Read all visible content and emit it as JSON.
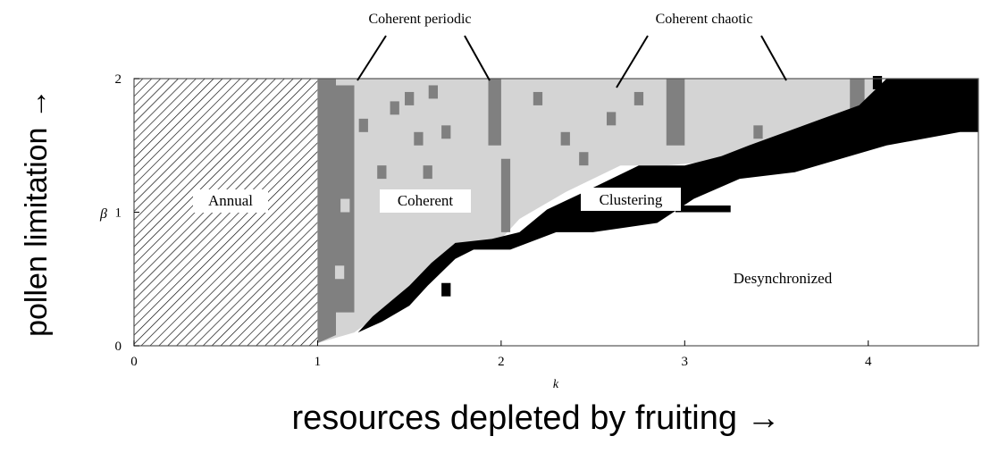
{
  "chart_data": {
    "type": "heatmap",
    "xlabel": "k",
    "ylabel": "β",
    "xlim": [
      0,
      4.6
    ],
    "ylim": [
      0,
      2
    ],
    "x_ticks": [
      "0",
      "1",
      "2",
      "3",
      "4"
    ],
    "y_ticks": [
      "0",
      "1",
      "2"
    ],
    "outer_xlabel": "resources depleted by fruiting →",
    "outer_ylabel": "pollen limitation →",
    "categories": {
      "annual": {
        "label": "Annual",
        "fill": "hatched"
      },
      "periodic": {
        "label": "Coherent periodic",
        "color": "#808080"
      },
      "chaotic": {
        "label": "Coherent chaotic",
        "color": "#d4d4d4"
      },
      "clustering": {
        "label": "Clustering",
        "color": "#000000"
      },
      "desync": {
        "label": "Desynchronized",
        "color": "#ffffff"
      }
    },
    "annotations": {
      "annual": "Annual",
      "coherent": "Coherent",
      "clustering": "Clustering",
      "desync": "Desynchronized",
      "coherent_periodic": "Coherent periodic",
      "coherent_chaotic": "Coherent chaotic"
    },
    "regions": [
      {
        "class": "annual",
        "points": [
          [
            0,
            0
          ],
          [
            1,
            0
          ],
          [
            1,
            2
          ],
          [
            0,
            2
          ]
        ]
      },
      {
        "class": "chaotic",
        "points": [
          [
            1.0,
            0.02
          ],
          [
            1.2,
            0.1
          ],
          [
            1.45,
            0.35
          ],
          [
            1.6,
            0.55
          ],
          [
            1.8,
            0.75
          ],
          [
            2.0,
            0.8
          ],
          [
            2.1,
            0.95
          ],
          [
            2.35,
            1.15
          ],
          [
            2.65,
            1.35
          ],
          [
            2.9,
            1.35
          ],
          [
            3.3,
            1.4
          ],
          [
            3.6,
            1.55
          ],
          [
            3.9,
            1.75
          ],
          [
            4.1,
            1.9
          ],
          [
            4.05,
            2.0
          ],
          [
            1.0,
            2.0
          ]
        ]
      },
      {
        "class": "periodic",
        "points": [
          [
            1.0,
            0.02
          ],
          [
            1.1,
            0.08
          ],
          [
            1.1,
            2.0
          ],
          [
            1.0,
            2.0
          ]
        ]
      },
      {
        "class": "periodic",
        "points": [
          [
            1.1,
            0.25
          ],
          [
            1.2,
            0.25
          ],
          [
            1.2,
            1.95
          ],
          [
            1.1,
            1.95
          ]
        ]
      },
      {
        "class": "periodic",
        "points": [
          [
            1.93,
            1.5
          ],
          [
            2.0,
            1.5
          ],
          [
            2.0,
            2.0
          ],
          [
            1.93,
            2.0
          ]
        ]
      },
      {
        "class": "periodic",
        "points": [
          [
            2.0,
            0.85
          ],
          [
            2.05,
            0.85
          ],
          [
            2.05,
            1.4
          ],
          [
            2.0,
            1.4
          ]
        ]
      },
      {
        "class": "periodic",
        "points": [
          [
            2.9,
            1.5
          ],
          [
            3.0,
            1.5
          ],
          [
            3.0,
            2.0
          ],
          [
            2.9,
            2.0
          ]
        ]
      },
      {
        "class": "periodic",
        "points": [
          [
            3.9,
            1.75
          ],
          [
            3.98,
            1.75
          ],
          [
            3.98,
            2.0
          ],
          [
            3.9,
            2.0
          ]
        ]
      },
      {
        "class": "clustering",
        "points": [
          [
            1.22,
            0.1
          ],
          [
            1.35,
            0.18
          ],
          [
            1.5,
            0.3
          ],
          [
            1.6,
            0.45
          ],
          [
            1.75,
            0.65
          ],
          [
            1.85,
            0.72
          ],
          [
            2.05,
            0.72
          ],
          [
            2.3,
            0.85
          ],
          [
            2.5,
            0.85
          ],
          [
            2.85,
            0.92
          ],
          [
            3.05,
            1.1
          ],
          [
            3.3,
            1.25
          ],
          [
            3.6,
            1.3
          ],
          [
            3.85,
            1.4
          ],
          [
            4.1,
            1.5
          ],
          [
            4.5,
            1.6
          ],
          [
            4.6,
            1.6
          ],
          [
            4.6,
            2.0
          ],
          [
            4.1,
            2.0
          ],
          [
            3.95,
            1.8
          ],
          [
            3.75,
            1.7
          ],
          [
            3.35,
            1.5
          ],
          [
            3.2,
            1.42
          ],
          [
            3.0,
            1.35
          ],
          [
            2.75,
            1.35
          ],
          [
            2.45,
            1.15
          ],
          [
            2.25,
            1.02
          ],
          [
            2.1,
            0.85
          ],
          [
            1.95,
            0.8
          ],
          [
            1.75,
            0.77
          ],
          [
            1.62,
            0.62
          ],
          [
            1.5,
            0.45
          ],
          [
            1.3,
            0.22
          ]
        ]
      },
      {
        "class": "clustering",
        "points": [
          [
            2.95,
            1.0
          ],
          [
            3.25,
            1.0
          ],
          [
            3.25,
            1.05
          ],
          [
            2.95,
            1.05
          ]
        ]
      }
    ],
    "speckles": [
      {
        "class": "periodic",
        "x": 1.42,
        "y": 1.78
      },
      {
        "class": "periodic",
        "x": 1.5,
        "y": 1.85
      },
      {
        "class": "periodic",
        "x": 1.63,
        "y": 1.9
      },
      {
        "class": "periodic",
        "x": 1.55,
        "y": 1.55
      },
      {
        "class": "periodic",
        "x": 1.7,
        "y": 1.6
      },
      {
        "class": "periodic",
        "x": 1.35,
        "y": 1.3
      },
      {
        "class": "periodic",
        "x": 1.6,
        "y": 1.3
      },
      {
        "class": "periodic",
        "x": 1.25,
        "y": 1.65
      },
      {
        "class": "periodic",
        "x": 2.2,
        "y": 1.85
      },
      {
        "class": "periodic",
        "x": 2.35,
        "y": 1.55
      },
      {
        "class": "periodic",
        "x": 2.45,
        "y": 1.4
      },
      {
        "class": "periodic",
        "x": 2.6,
        "y": 1.7
      },
      {
        "class": "periodic",
        "x": 3.4,
        "y": 1.6
      },
      {
        "class": "periodic",
        "x": 2.75,
        "y": 1.85
      },
      {
        "class": "chaotic",
        "x": 1.15,
        "y": 1.05
      },
      {
        "class": "chaotic",
        "x": 1.12,
        "y": 0.55
      },
      {
        "class": "clustering",
        "x": 1.7,
        "y": 0.42
      },
      {
        "class": "clustering",
        "x": 4.05,
        "y": 1.97
      }
    ]
  }
}
